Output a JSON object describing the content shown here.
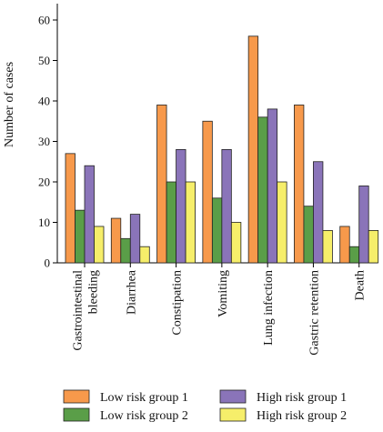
{
  "chart_data": {
    "type": "bar",
    "title": "",
    "xlabel": "",
    "ylabel": "Number of cases",
    "ylim": [
      0,
      60
    ],
    "yticks": [
      0,
      10,
      20,
      30,
      40,
      50,
      60
    ],
    "grid": false,
    "legend_position": "bottom",
    "categories": [
      "Gastrointestinal bleeding",
      "Diarrhea",
      "Constipation",
      "Vomiting",
      "Lung infection",
      "Gastric retention",
      "Death"
    ],
    "category_lines": [
      [
        "Gastrointestinal",
        "bleeding"
      ],
      [
        "Diarrhea"
      ],
      [
        "Constipation"
      ],
      [
        "Vomiting"
      ],
      [
        "Lung infection"
      ],
      [
        "Gastric retention"
      ],
      [
        "Death"
      ]
    ],
    "series": [
      {
        "name": "Low risk group 1",
        "color": "#F7994B",
        "values": [
          27,
          11,
          39,
          35,
          56,
          39,
          9
        ]
      },
      {
        "name": "Low risk group 2",
        "color": "#5A9E48",
        "values": [
          13,
          6,
          20,
          16,
          36,
          14,
          4
        ]
      },
      {
        "name": "High risk group 1",
        "color": "#8A74B9",
        "values": [
          24,
          12,
          28,
          28,
          38,
          25,
          19
        ]
      },
      {
        "name": "High risk group 2",
        "color": "#F6EE6A",
        "values": [
          9,
          4,
          20,
          10,
          20,
          8,
          8
        ]
      }
    ]
  }
}
